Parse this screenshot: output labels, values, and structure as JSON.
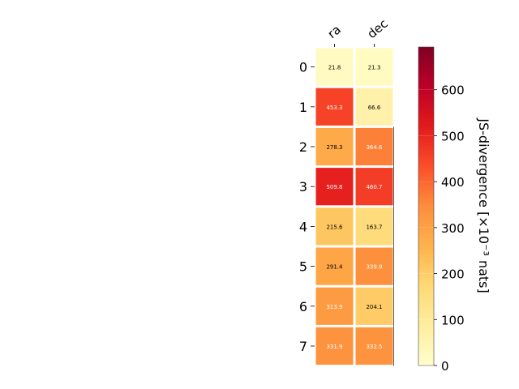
{
  "chart_data": {
    "type": "heatmap",
    "title": "",
    "xlabel": "",
    "ylabel": "",
    "columns": [
      "ra",
      "dec"
    ],
    "rows": [
      "0",
      "1",
      "2",
      "3",
      "4",
      "5",
      "6",
      "7"
    ],
    "values": [
      [
        21.8,
        21.3
      ],
      [
        453.3,
        66.6
      ],
      [
        278.3,
        364.6
      ],
      [
        509.8,
        460.7
      ],
      [
        215.6,
        163.7
      ],
      [
        291.4,
        339.9
      ],
      [
        313.9,
        204.1
      ],
      [
        331.9,
        332.5
      ]
    ],
    "cell_labels": [
      [
        "21.8",
        "21.3"
      ],
      [
        "453.3",
        "66.6"
      ],
      [
        "278.3",
        "364.6"
      ],
      [
        "509.8",
        "460.7"
      ],
      [
        "215.6",
        "163.7"
      ],
      [
        "291.4",
        "339.9"
      ],
      [
        "313.9",
        "204.1"
      ],
      [
        "331.9",
        "332.5"
      ]
    ],
    "colormap": "YlOrRd",
    "colorbar": {
      "label": "JS-divergence [×10⁻³ nats]",
      "range": [
        0,
        693
      ],
      "ticks": [
        0,
        100,
        200,
        300,
        400,
        500,
        600
      ],
      "tick_labels": [
        "0",
        "100",
        "200",
        "300",
        "400",
        "500",
        "600"
      ]
    },
    "grid": false,
    "legend": "none"
  }
}
